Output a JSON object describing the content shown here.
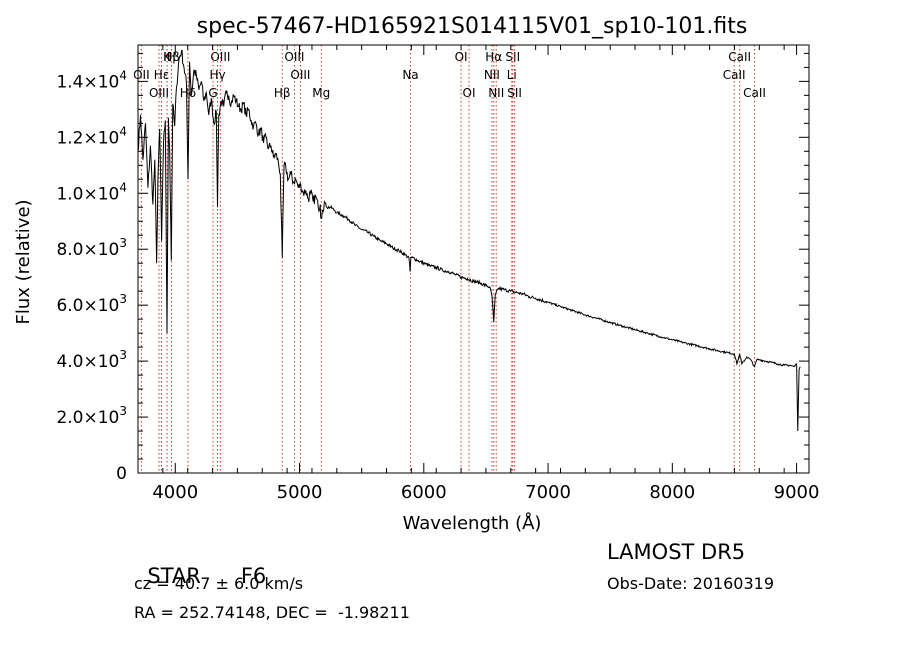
{
  "chart_data": {
    "type": "line",
    "title": "spec-57467-HD165921S014115V01_sp10-101.fits",
    "xlabel": "Wavelength (Å)",
    "ylabel": "Flux (relative)",
    "xlim": [
      3700,
      9100
    ],
    "ylim": [
      0,
      15300
    ],
    "x_ticks": [
      4000,
      5000,
      6000,
      7000,
      8000,
      9000
    ],
    "x_tick_labels": [
      "4000",
      "5000",
      "6000",
      "7000",
      "8000",
      "9000"
    ],
    "y_ticks": [
      0,
      2000,
      4000,
      6000,
      8000,
      10000,
      12000,
      14000
    ],
    "y_tick_labels": [
      {
        "mantissa": "0",
        "exp": ""
      },
      {
        "mantissa": "2.0×10",
        "exp": "3"
      },
      {
        "mantissa": "4.0×10",
        "exp": "3"
      },
      {
        "mantissa": "6.0×10",
        "exp": "3"
      },
      {
        "mantissa": "8.0×10",
        "exp": "3"
      },
      {
        "mantissa": "1.0×10",
        "exp": "4"
      },
      {
        "mantissa": "1.2×10",
        "exp": "4"
      },
      {
        "mantissa": "1.4×10",
        "exp": "4"
      }
    ],
    "grid": false,
    "series": [
      {
        "x": [
          3700,
          3720,
          3740,
          3760,
          3780,
          3800,
          3820,
          3835,
          3850,
          3860,
          3875,
          3890,
          3905,
          3920,
          3933,
          3945,
          3955,
          3968,
          3980,
          3995,
          4010,
          4030,
          4050,
          4070,
          4090,
          4102,
          4115,
          4130,
          4150,
          4170,
          4190,
          4210,
          4230,
          4250,
          4270,
          4290,
          4310,
          4330,
          4340,
          4350,
          4370,
          4390,
          4410,
          4430,
          4450,
          4470,
          4490,
          4510,
          4530,
          4550,
          4570,
          4590,
          4610,
          4630,
          4650,
          4670,
          4690,
          4710,
          4730,
          4750,
          4770,
          4790,
          4810,
          4830,
          4845,
          4861,
          4875,
          4890,
          4910,
          4930,
          4950,
          4970,
          4990,
          5010,
          5030,
          5050,
          5070,
          5090,
          5110,
          5130,
          5150,
          5167,
          5172,
          5184,
          5200,
          5220,
          5250,
          5280,
          5300,
          5350,
          5400,
          5450,
          5500,
          5550,
          5600,
          5650,
          5700,
          5750,
          5800,
          5850,
          5880,
          5890,
          5896,
          5910,
          5950,
          6000,
          6050,
          6100,
          6150,
          6200,
          6250,
          6300,
          6350,
          6400,
          6450,
          6500,
          6530,
          6550,
          6563,
          6575,
          6600,
          6650,
          6700,
          6750,
          6800,
          6850,
          6900,
          7000,
          7100,
          7200,
          7300,
          7400,
          7500,
          7600,
          7700,
          7800,
          7900,
          8000,
          8100,
          8200,
          8300,
          8400,
          8450,
          8500,
          8520,
          8542,
          8560,
          8600,
          8630,
          8662,
          8680,
          8700,
          8750,
          8800,
          8850,
          8900,
          8950,
          8980,
          9000,
          9010,
          9020,
          9030
        ],
        "y": [
          11500,
          12800,
          11200,
          12500,
          10200,
          11700,
          9600,
          11200,
          7500,
          10500,
          12300,
          8300,
          11800,
          12600,
          5000,
          12700,
          11500,
          7600,
          13200,
          12400,
          13800,
          14800,
          15100,
          14500,
          13900,
          10500,
          14700,
          13500,
          14400,
          14200,
          13700,
          14000,
          13300,
          13600,
          12800,
          13400,
          12500,
          12900,
          9500,
          12800,
          13300,
          13100,
          13600,
          13500,
          13200,
          13500,
          13300,
          13100,
          13000,
          13200,
          12800,
          13000,
          12600,
          12400,
          12500,
          12100,
          12300,
          11800,
          12000,
          11600,
          11700,
          11300,
          11400,
          11100,
          10700,
          7700,
          11000,
          10900,
          10500,
          10700,
          10400,
          10500,
          10200,
          10300,
          10000,
          10100,
          9800,
          10000,
          9700,
          9900,
          9500,
          9600,
          9100,
          9400,
          9700,
          9500,
          9500,
          9400,
          9300,
          9200,
          9050,
          8850,
          8700,
          8600,
          8450,
          8300,
          8200,
          8050,
          7950,
          7800,
          7700,
          7200,
          7700,
          7700,
          7600,
          7500,
          7400,
          7350,
          7250,
          7200,
          7100,
          7000,
          6950,
          6850,
          6800,
          6700,
          6650,
          6300,
          5400,
          6350,
          6600,
          6550,
          6500,
          6450,
          6400,
          6300,
          6250,
          6100,
          5950,
          5800,
          5650,
          5520,
          5380,
          5250,
          5120,
          5000,
          4880,
          4760,
          4650,
          4550,
          4440,
          4340,
          4300,
          4250,
          3900,
          4250,
          3900,
          4150,
          4050,
          3800,
          4050,
          4050,
          4000,
          3950,
          3900,
          3850,
          3850,
          3800,
          3900,
          1500,
          3700,
          3800
        ]
      }
    ],
    "line_markers": [
      {
        "label": "Hβ",
        "x": 3970,
        "level": 0
      },
      {
        "label": "K",
        "x": 3934,
        "level": 0
      },
      {
        "label": "H",
        "x": 3969,
        "level": 0
      },
      {
        "label": "OII",
        "x": 3727,
        "level": 1
      },
      {
        "label": "Hε",
        "x": 3889,
        "level": 1
      },
      {
        "label": "OIII",
        "x": 3869,
        "level": 2
      },
      {
        "label": "Hδ",
        "x": 4102,
        "level": 2
      },
      {
        "label": "OIII",
        "x": 4363,
        "level": 0
      },
      {
        "label": "Hγ",
        "x": 4340,
        "level": 1
      },
      {
        "label": "G",
        "x": 4304,
        "level": 2
      },
      {
        "label": "OIII",
        "x": 4959,
        "level": 0
      },
      {
        "label": "OIII",
        "x": 5007,
        "level": 1
      },
      {
        "label": "Hβ",
        "x": 4861,
        "level": 2
      },
      {
        "label": "Mg",
        "x": 5175,
        "level": 2
      },
      {
        "label": "Na",
        "x": 5893,
        "level": 1
      },
      {
        "label": "OI",
        "x": 6300,
        "level": 0
      },
      {
        "label": "OI",
        "x": 6364,
        "level": 2
      },
      {
        "label": "Hα",
        "x": 6563,
        "level": 0
      },
      {
        "label": "SII",
        "x": 6716,
        "level": 0
      },
      {
        "label": "NII",
        "x": 6548,
        "level": 1
      },
      {
        "label": "Li",
        "x": 6708,
        "level": 1
      },
      {
        "label": "NII",
        "x": 6583,
        "level": 2
      },
      {
        "label": "SII",
        "x": 6731,
        "level": 2
      },
      {
        "label": "CaII",
        "x": 8542,
        "level": 0
      },
      {
        "label": "CaII",
        "x": 8498,
        "level": 1
      },
      {
        "label": "CaII",
        "x": 8662,
        "level": 2
      }
    ]
  },
  "info": {
    "object_class": "STAR",
    "subclass": "F6",
    "survey": "LAMOST DR5",
    "redshift": "cz = 40.7 ± 6.0 km/s",
    "obs_date": "Obs-Date: 20160319",
    "coords": "RA = 252.74148, DEC =  -1.98211"
  },
  "colors": {
    "marker_line": "#c0392b",
    "spectrum": "#000000"
  }
}
